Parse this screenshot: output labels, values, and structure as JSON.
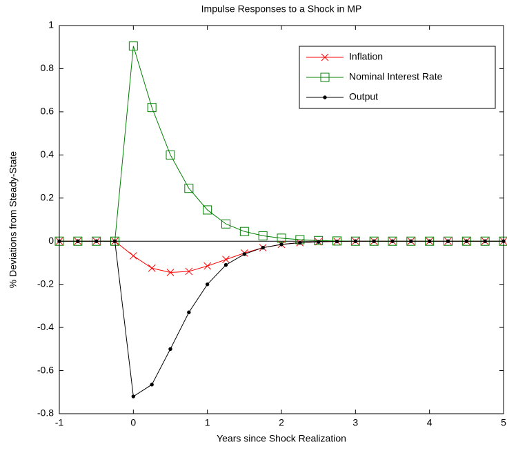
{
  "chart_data": {
    "type": "line",
    "title": "Impulse Responses to a Shock in MP",
    "x_label": "Years since Shock Realization",
    "y_label": "% Deviations from Steady-State",
    "x": [
      -1,
      -0.75,
      -0.5,
      -0.25,
      0,
      0.25,
      0.5,
      0.75,
      1,
      1.25,
      1.5,
      1.75,
      2,
      2.25,
      2.5,
      2.75,
      3,
      3.25,
      3.5,
      3.75,
      4,
      4.25,
      4.5,
      4.75,
      5
    ],
    "series": [
      {
        "name": "Inflation",
        "color": "#ff0000",
        "marker": "x",
        "values": [
          0,
          0,
          0,
          0,
          -0.068,
          -0.125,
          -0.145,
          -0.14,
          -0.115,
          -0.085,
          -0.055,
          -0.03,
          -0.015,
          -0.007,
          -0.003,
          -0.001,
          0,
          0,
          0,
          0,
          0,
          0,
          0,
          0,
          0
        ]
      },
      {
        "name": "Nominal Interest Rate",
        "color": "#008000",
        "marker": "square",
        "values": [
          0,
          0,
          0,
          0,
          0.905,
          0.62,
          0.4,
          0.245,
          0.145,
          0.08,
          0.045,
          0.025,
          0.014,
          0.007,
          0.003,
          0.001,
          0,
          0,
          0,
          0,
          0,
          0,
          0,
          0,
          0
        ]
      },
      {
        "name": "Output",
        "color": "#000000",
        "marker": "dot",
        "values": [
          0,
          0,
          0,
          0,
          -0.72,
          -0.665,
          -0.5,
          -0.33,
          -0.2,
          -0.11,
          -0.06,
          -0.03,
          -0.015,
          -0.007,
          -0.003,
          -0.001,
          0,
          0,
          0,
          0,
          0,
          0,
          0,
          0,
          0
        ]
      }
    ],
    "xlim": [
      -1,
      5
    ],
    "xticks": [
      -1,
      0,
      1,
      2,
      3,
      4,
      5
    ],
    "ylim": [
      -0.8,
      1
    ],
    "yticks": [
      -0.8,
      -0.6,
      -0.4,
      -0.2,
      0,
      0.2,
      0.4,
      0.6,
      0.8,
      1
    ],
    "legend": "northeast",
    "grid": false
  }
}
